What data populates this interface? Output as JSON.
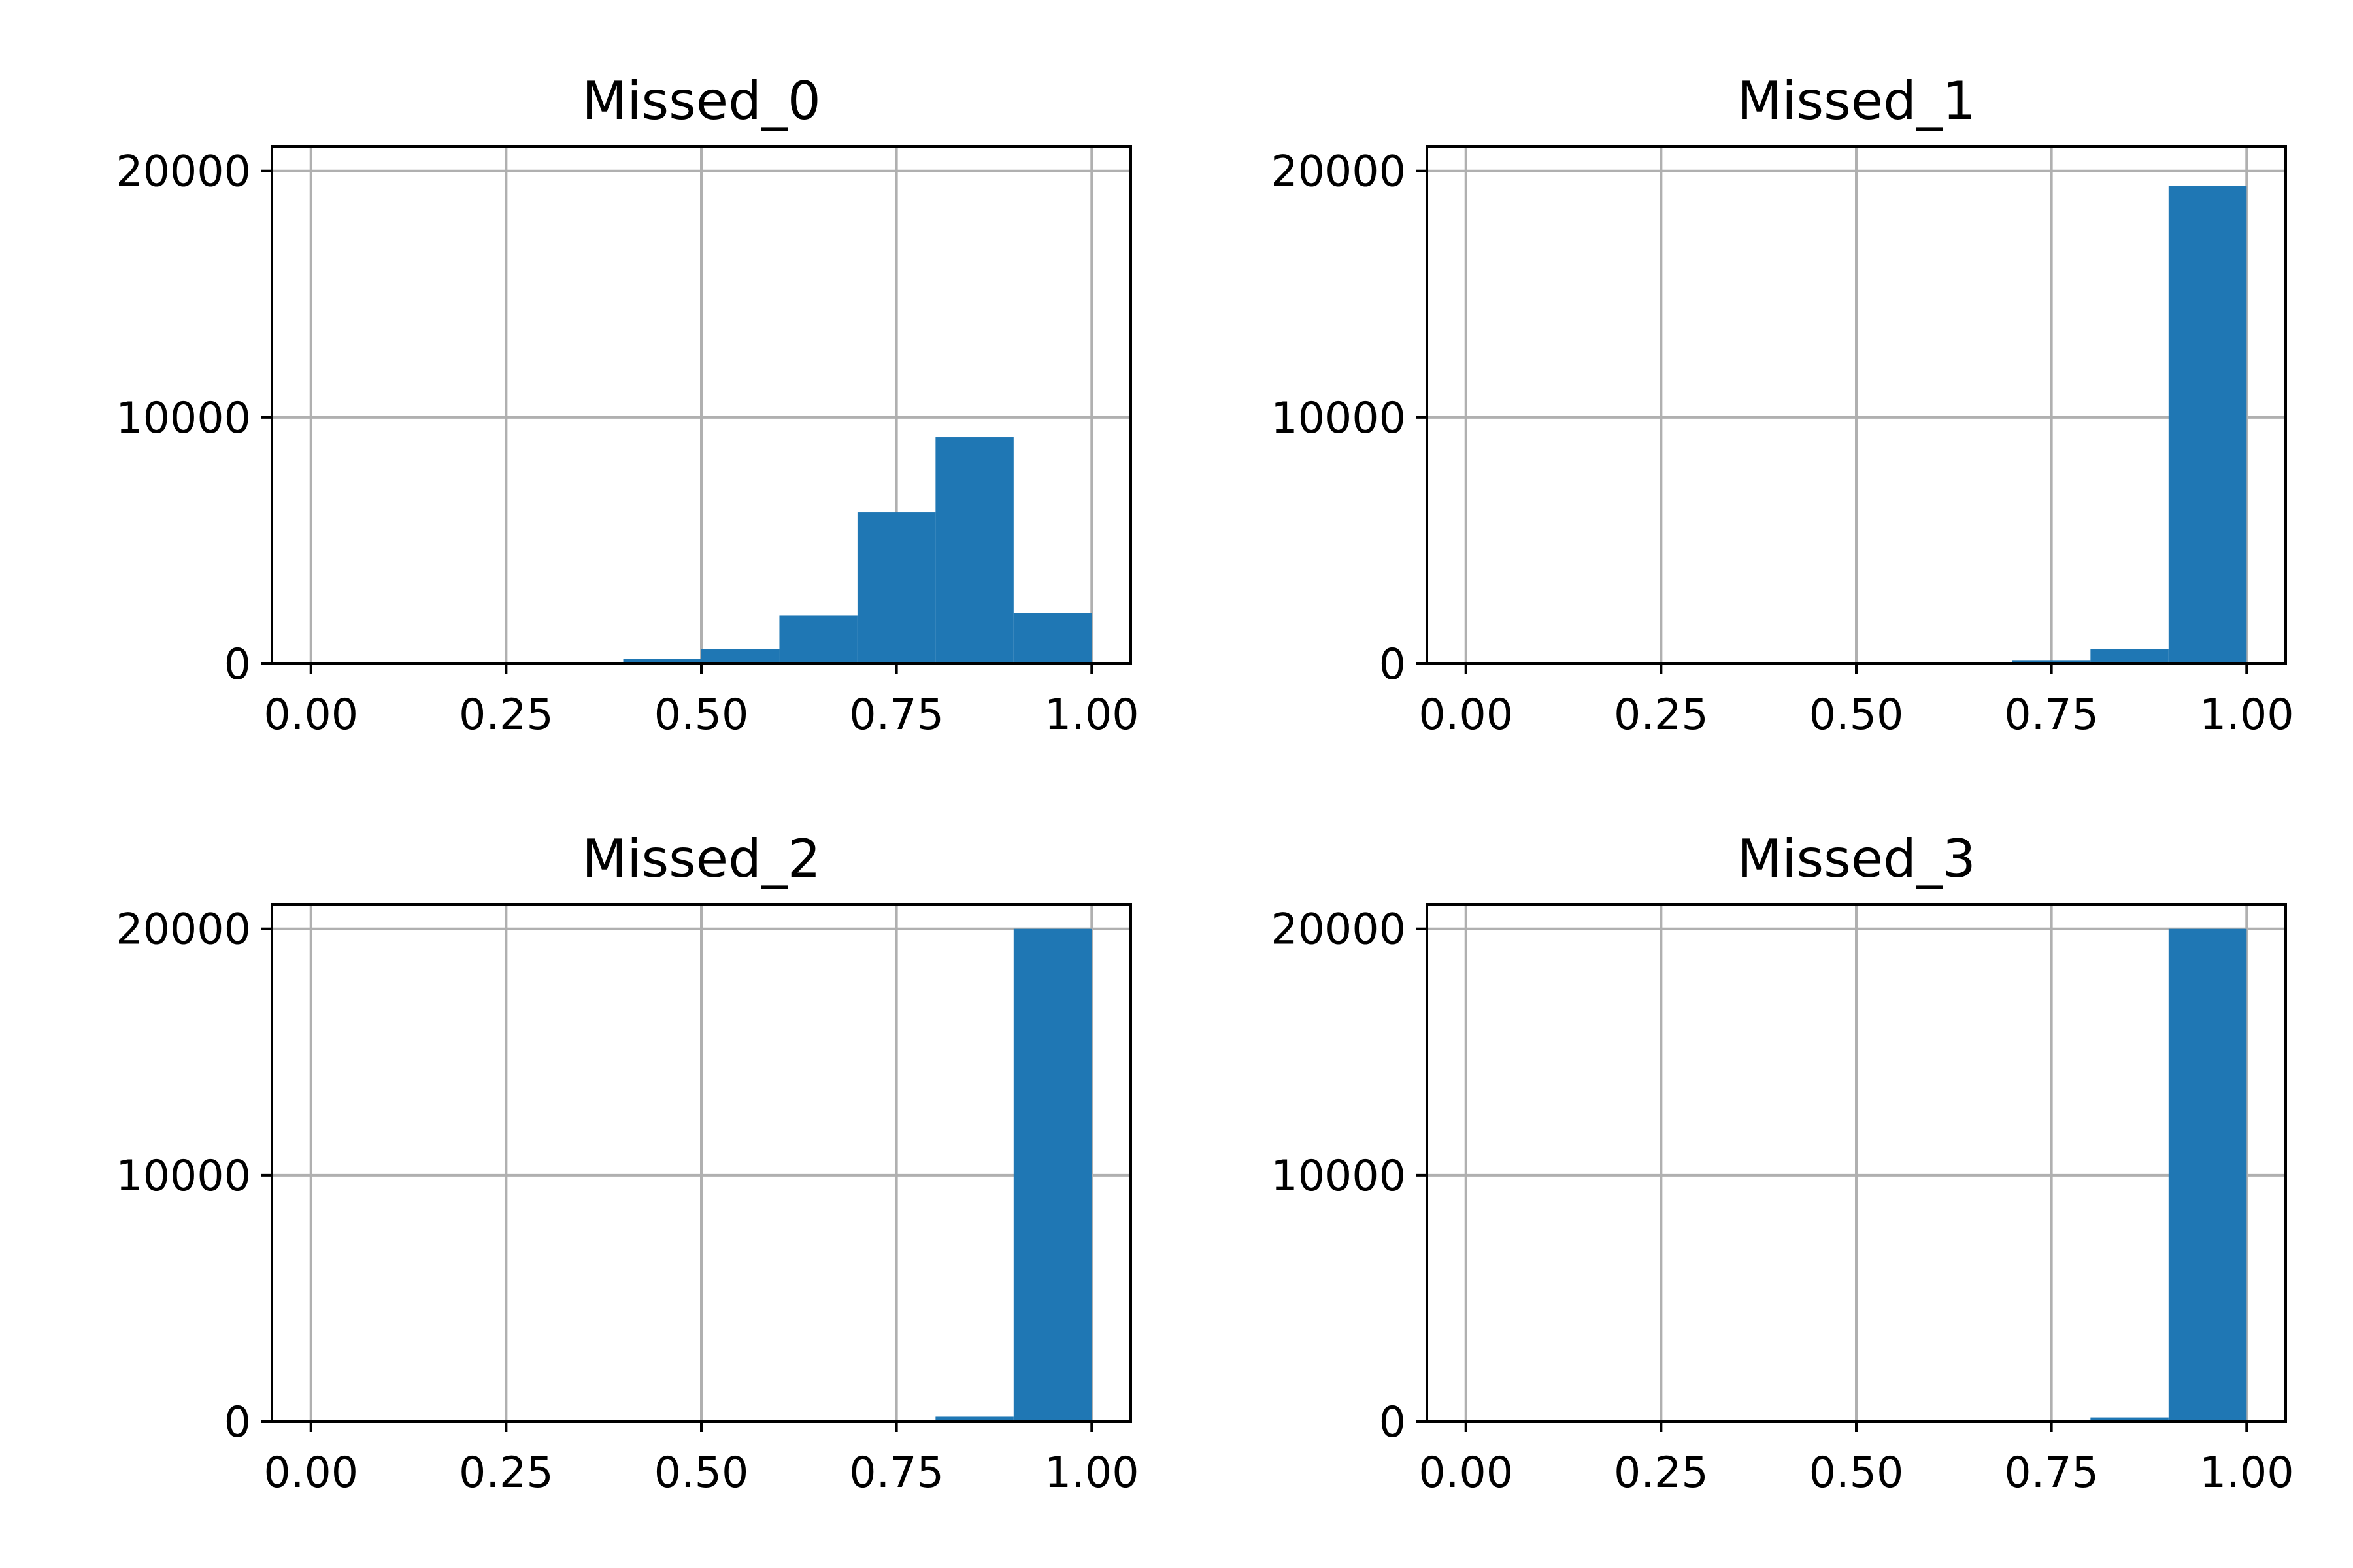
{
  "chart_data": [
    {
      "type": "bar",
      "title": "Missed_0",
      "xlabel": "",
      "ylabel": "",
      "bin_edges": [
        0.0,
        0.1,
        0.2,
        0.3,
        0.4,
        0.5,
        0.6,
        0.7,
        0.8,
        0.9,
        1.0
      ],
      "values": [
        0,
        0,
        0,
        50,
        200,
        600,
        1950,
        6150,
        9200,
        2050
      ],
      "xlim": [
        -0.05,
        1.05
      ],
      "ylim": [
        0,
        21000
      ],
      "xticks": [
        "0.00",
        "0.25",
        "0.50",
        "0.75",
        "1.00"
      ],
      "yticks": [
        "0",
        "10000",
        "20000"
      ],
      "grid": true
    },
    {
      "type": "bar",
      "title": "Missed_1",
      "xlabel": "",
      "ylabel": "",
      "bin_edges": [
        0.0,
        0.1,
        0.2,
        0.3,
        0.4,
        0.5,
        0.6,
        0.7,
        0.8,
        0.9,
        1.0
      ],
      "values": [
        0,
        0,
        0,
        0,
        0,
        0,
        30,
        150,
        600,
        19400
      ],
      "xlim": [
        -0.05,
        1.05
      ],
      "ylim": [
        0,
        21000
      ],
      "xticks": [
        "0.00",
        "0.25",
        "0.50",
        "0.75",
        "1.00"
      ],
      "yticks": [
        "0",
        "10000",
        "20000"
      ],
      "grid": true
    },
    {
      "type": "bar",
      "title": "Missed_2",
      "xlabel": "",
      "ylabel": "",
      "bin_edges": [
        0.0,
        0.1,
        0.2,
        0.3,
        0.4,
        0.5,
        0.6,
        0.7,
        0.8,
        0.9,
        1.0
      ],
      "values": [
        0,
        0,
        0,
        0,
        0,
        0,
        0,
        60,
        200,
        20000
      ],
      "xlim": [
        -0.05,
        1.05
      ],
      "ylim": [
        0,
        21000
      ],
      "xticks": [
        "0.00",
        "0.25",
        "0.50",
        "0.75",
        "1.00"
      ],
      "yticks": [
        "0",
        "10000",
        "20000"
      ],
      "grid": true
    },
    {
      "type": "bar",
      "title": "Missed_3",
      "xlabel": "",
      "ylabel": "",
      "bin_edges": [
        0.0,
        0.1,
        0.2,
        0.3,
        0.4,
        0.5,
        0.6,
        0.7,
        0.8,
        0.9,
        1.0
      ],
      "values": [
        0,
        0,
        0,
        0,
        0,
        0,
        0,
        60,
        170,
        20000
      ],
      "xlim": [
        -0.05,
        1.05
      ],
      "ylim": [
        0,
        21000
      ],
      "xticks": [
        "0.00",
        "0.25",
        "0.50",
        "0.75",
        "1.00"
      ],
      "yticks": [
        "0",
        "10000",
        "20000"
      ],
      "grid": true
    }
  ],
  "colors": {
    "bar_fill": "#1f77b4",
    "grid": "#b0b0b0",
    "axes": "#000000",
    "background": "#ffffff"
  }
}
